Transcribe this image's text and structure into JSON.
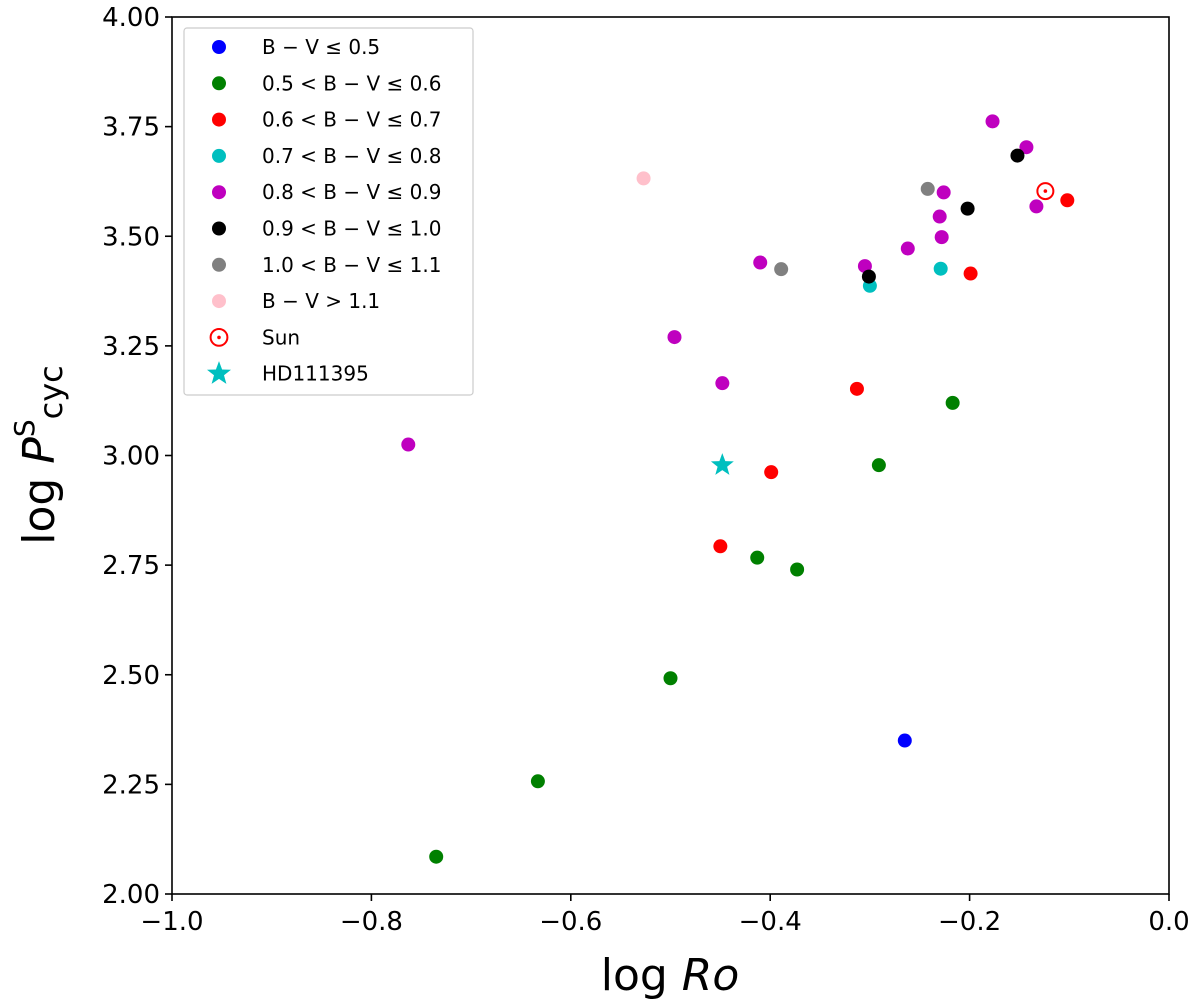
{
  "chart_data": {
    "type": "scatter",
    "xlabel": "log Ro",
    "ylabel": "log P^S cyc",
    "xlim": [
      -1.0,
      0.0
    ],
    "ylim": [
      2.0,
      4.0
    ],
    "grid": false,
    "legend_position": "top-left",
    "x_ticks": [
      "−1.0",
      "−0.8",
      "−0.6",
      "−0.4",
      "−0.2",
      "0.0"
    ],
    "y_ticks": [
      "2.00",
      "2.25",
      "2.50",
      "2.75",
      "3.00",
      "3.25",
      "3.50",
      "3.75",
      "4.00"
    ],
    "series": [
      {
        "name": "B − V ≤ 0.5",
        "color": "#0000ff",
        "marker": "circle",
        "points": [
          [
            -0.265,
            2.35
          ]
        ]
      },
      {
        "name": "0.5 < B − V ≤ 0.6",
        "color": "#008000",
        "marker": "circle",
        "points": [
          [
            -0.735,
            2.085
          ],
          [
            -0.633,
            2.257
          ],
          [
            -0.5,
            2.492
          ],
          [
            -0.413,
            2.767
          ],
          [
            -0.373,
            2.74
          ],
          [
            -0.291,
            2.978
          ],
          [
            -0.217,
            3.12
          ]
        ]
      },
      {
        "name": "0.6 < B − V ≤ 0.7",
        "color": "#ff0000",
        "marker": "circle",
        "points": [
          [
            -0.45,
            2.793
          ],
          [
            -0.399,
            2.962
          ],
          [
            -0.313,
            3.152
          ],
          [
            -0.199,
            3.415
          ],
          [
            -0.102,
            3.582
          ]
        ]
      },
      {
        "name": "0.7 < B − V ≤ 0.8",
        "color": "#00bfbf",
        "marker": "circle",
        "points": [
          [
            -0.3,
            3.387
          ],
          [
            -0.229,
            3.426
          ]
        ]
      },
      {
        "name": "0.8 < B − V ≤ 0.9",
        "color": "#bf00bf",
        "marker": "circle",
        "points": [
          [
            -0.763,
            3.025
          ],
          [
            -0.496,
            3.27
          ],
          [
            -0.448,
            3.165
          ],
          [
            -0.41,
            3.44
          ],
          [
            -0.305,
            3.432
          ],
          [
            -0.262,
            3.472
          ],
          [
            -0.23,
            3.545
          ],
          [
            -0.228,
            3.498
          ],
          [
            -0.226,
            3.6
          ],
          [
            -0.177,
            3.762
          ],
          [
            -0.143,
            3.703
          ],
          [
            -0.133,
            3.568
          ]
        ]
      },
      {
        "name": "0.9 < B − V ≤ 1.0",
        "color": "#000000",
        "marker": "circle",
        "points": [
          [
            -0.301,
            3.408
          ],
          [
            -0.202,
            3.563
          ],
          [
            -0.152,
            3.684
          ]
        ]
      },
      {
        "name": "1.0 < B − V ≤ 1.1",
        "color": "#808080",
        "marker": "circle",
        "points": [
          [
            -0.389,
            3.425
          ],
          [
            -0.242,
            3.608
          ]
        ]
      },
      {
        "name": "B − V > 1.1",
        "color": "#ffc0cb",
        "marker": "circle",
        "points": [
          [
            -0.527,
            3.632
          ]
        ]
      },
      {
        "name": "Sun",
        "color": "#ff0000",
        "marker": "sun",
        "points": [
          [
            -0.124,
            3.603
          ]
        ]
      },
      {
        "name": "HD111395",
        "color": "#00bfbf",
        "marker": "star",
        "points": [
          [
            -0.448,
            2.978
          ]
        ]
      }
    ]
  }
}
